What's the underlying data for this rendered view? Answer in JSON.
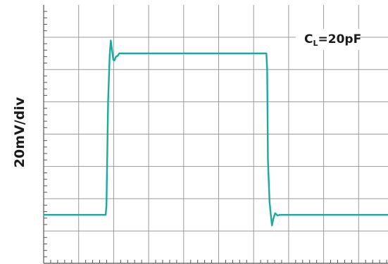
{
  "chart_data": {
    "type": "line",
    "title": "",
    "ylabel": "20mV/div",
    "xlabel": "",
    "grid": true,
    "divisions": {
      "x": 10,
      "y": 8
    },
    "annotation": {
      "base": "C",
      "sub": "L",
      "rest": "=20pF"
    },
    "trace_color": "#1aaaa0",
    "series": [
      {
        "x": [
          0,
          3.9,
          3.95,
          4.05,
          4.15,
          4.22,
          4.3,
          4.38,
          4.45,
          4.55,
          4.65,
          4.75,
          4.85,
          5.0,
          14.0,
          14.05,
          14.1,
          14.2,
          14.28,
          14.35,
          14.45,
          14.55,
          14.7,
          14.85,
          15.0,
          22.0
        ],
        "y": [
          -2.5,
          -2.5,
          -2.2,
          1.0,
          2.45,
          2.9,
          2.6,
          2.3,
          2.28,
          2.4,
          2.42,
          2.5,
          2.5,
          2.5,
          2.5,
          2.0,
          -0.8,
          -2.1,
          -2.5,
          -2.83,
          -2.6,
          -2.45,
          -2.52,
          -2.5,
          -2.5,
          -2.5
        ]
      }
    ]
  }
}
